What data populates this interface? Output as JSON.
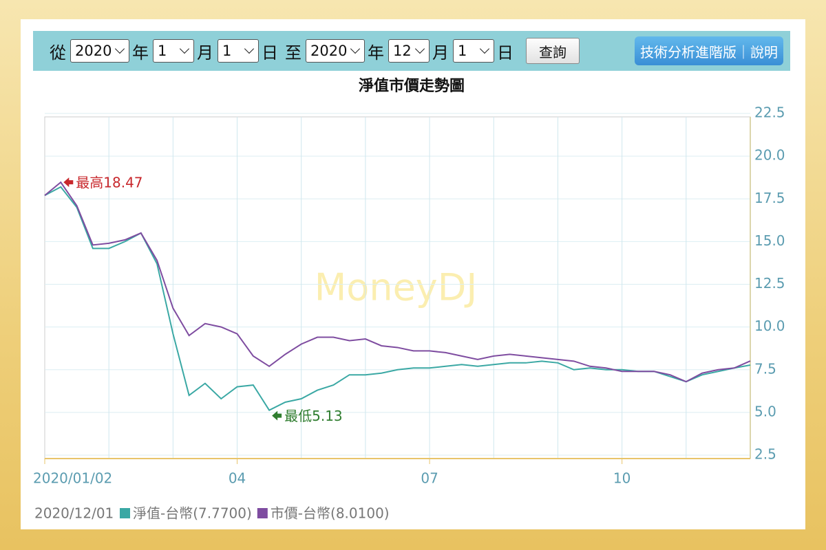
{
  "toolbar": {
    "from": "從",
    "from_year": "2020",
    "year": "年",
    "from_month": "1",
    "month": "月",
    "from_day": "1",
    "day": "日",
    "to": "至",
    "to_year": "2020",
    "to_month": "12",
    "to_day": "1",
    "query": "查詢",
    "advanced": "技術分析進階版｜說明"
  },
  "chart_data": {
    "type": "line",
    "title": "淨值市價走勢圖",
    "watermark": "MoneyDJ",
    "date_label": "2020/12/01",
    "categories": [
      "2020/01/02",
      null,
      null,
      null,
      null,
      null,
      null,
      null,
      null,
      null,
      null,
      null,
      "04",
      null,
      null,
      null,
      null,
      null,
      null,
      null,
      null,
      null,
      null,
      null,
      "07",
      null,
      null,
      null,
      null,
      null,
      null,
      null,
      null,
      null,
      null,
      null,
      "10",
      null,
      null,
      null,
      null,
      null,
      null,
      null,
      null
    ],
    "series": [
      {
        "name": "淨值-台幣(7.7700)",
        "color": "#3aa8a4",
        "values": [
          17.7,
          18.2,
          17.0,
          14.6,
          14.6,
          15.0,
          15.5,
          13.7,
          9.6,
          6.0,
          6.7,
          5.8,
          6.5,
          6.6,
          5.13,
          5.6,
          5.8,
          6.3,
          6.6,
          7.2,
          7.2,
          7.3,
          7.5,
          7.6,
          7.6,
          7.7,
          7.8,
          7.7,
          7.8,
          7.9,
          7.9,
          8.0,
          7.9,
          7.5,
          7.6,
          7.5,
          7.5,
          7.4,
          7.4,
          7.1,
          6.8,
          7.2,
          7.4,
          7.6,
          7.77
        ]
      },
      {
        "name": "市價-台幣(8.0100)",
        "color": "#7e4ca0",
        "values": [
          17.7,
          18.47,
          17.1,
          14.8,
          14.9,
          15.1,
          15.5,
          13.9,
          11.1,
          9.5,
          10.2,
          10.0,
          9.6,
          8.3,
          7.7,
          8.4,
          9.0,
          9.4,
          9.4,
          9.2,
          9.3,
          8.9,
          8.8,
          8.6,
          8.6,
          8.5,
          8.3,
          8.1,
          8.3,
          8.4,
          8.3,
          8.2,
          8.1,
          8.0,
          7.7,
          7.6,
          7.4,
          7.4,
          7.4,
          7.2,
          6.8,
          7.3,
          7.5,
          7.6,
          8.01
        ]
      }
    ],
    "annotations": [
      {
        "text": "最高18.47",
        "series": 1,
        "kind": "max",
        "color": "#c8282d"
      },
      {
        "text": "最低5.13",
        "series": 0,
        "kind": "min",
        "color": "#2f7d2f"
      }
    ],
    "ylim": [
      2.5,
      22.5
    ],
    "yticks": [
      2.5,
      {
        "value": 5,
        "label": "5.0"
      },
      7.5,
      {
        "value": 10,
        "label": "10.0"
      },
      12.5,
      {
        "value": 15,
        "label": "15.0"
      },
      17.5,
      {
        "value": 20,
        "label": "20.0"
      },
      22.5
    ],
    "grid": true
  }
}
